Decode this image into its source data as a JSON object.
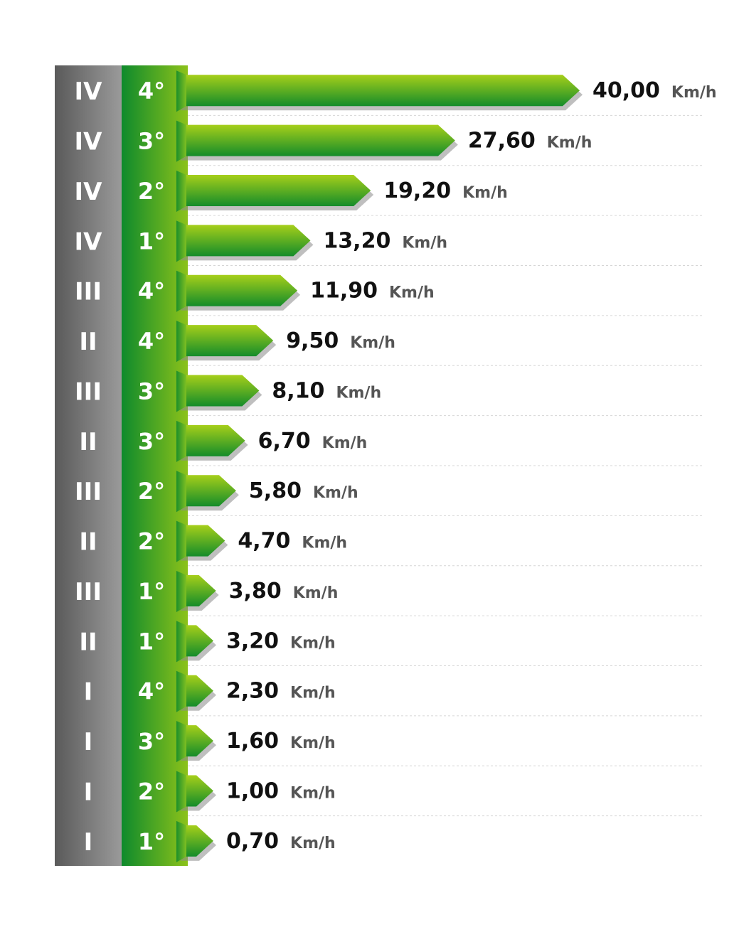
{
  "chart_data": {
    "type": "bar",
    "orientation": "horizontal",
    "unit": "Km/h",
    "grid": true,
    "colors": {
      "range_col_dark": "#5a5a5a",
      "range_col_light": "#9a9a9a",
      "gear_col_dark": "#0e8a2c",
      "gear_col_light": "#8cc21a",
      "bar_top": "#a6cf1a",
      "bar_bottom": "#148c2a",
      "bar_shadow": "#8a8a8a",
      "grid": "#d6d6d6"
    },
    "xlim": [
      0,
      40
    ],
    "rows": [
      {
        "range": "IV",
        "gear": "4°",
        "value": 40.0,
        "value_text": "40,00"
      },
      {
        "range": "IV",
        "gear": "3°",
        "value": 27.6,
        "value_text": "27,60"
      },
      {
        "range": "IV",
        "gear": "2°",
        "value": 19.2,
        "value_text": "19,20"
      },
      {
        "range": "IV",
        "gear": "1°",
        "value": 13.2,
        "value_text": "13,20"
      },
      {
        "range": "III",
        "gear": "4°",
        "value": 11.9,
        "value_text": "11,90"
      },
      {
        "range": "II",
        "gear": "4°",
        "value": 9.5,
        "value_text": "9,50"
      },
      {
        "range": "III",
        "gear": "3°",
        "value": 8.1,
        "value_text": "8,10"
      },
      {
        "range": "II",
        "gear": "3°",
        "value": 6.7,
        "value_text": "6,70"
      },
      {
        "range": "III",
        "gear": "2°",
        "value": 5.8,
        "value_text": "5,80"
      },
      {
        "range": "II",
        "gear": "2°",
        "value": 4.7,
        "value_text": "4,70"
      },
      {
        "range": "III",
        "gear": "1°",
        "value": 3.8,
        "value_text": "3,80"
      },
      {
        "range": "II",
        "gear": "1°",
        "value": 3.2,
        "value_text": "3,20"
      },
      {
        "range": "I",
        "gear": "4°",
        "value": 2.3,
        "value_text": "2,30"
      },
      {
        "range": "I",
        "gear": "3°",
        "value": 1.6,
        "value_text": "1,60"
      },
      {
        "range": "I",
        "gear": "2°",
        "value": 1.0,
        "value_text": "1,00"
      },
      {
        "range": "I",
        "gear": "1°",
        "value": 0.7,
        "value_text": "0,70"
      }
    ]
  }
}
